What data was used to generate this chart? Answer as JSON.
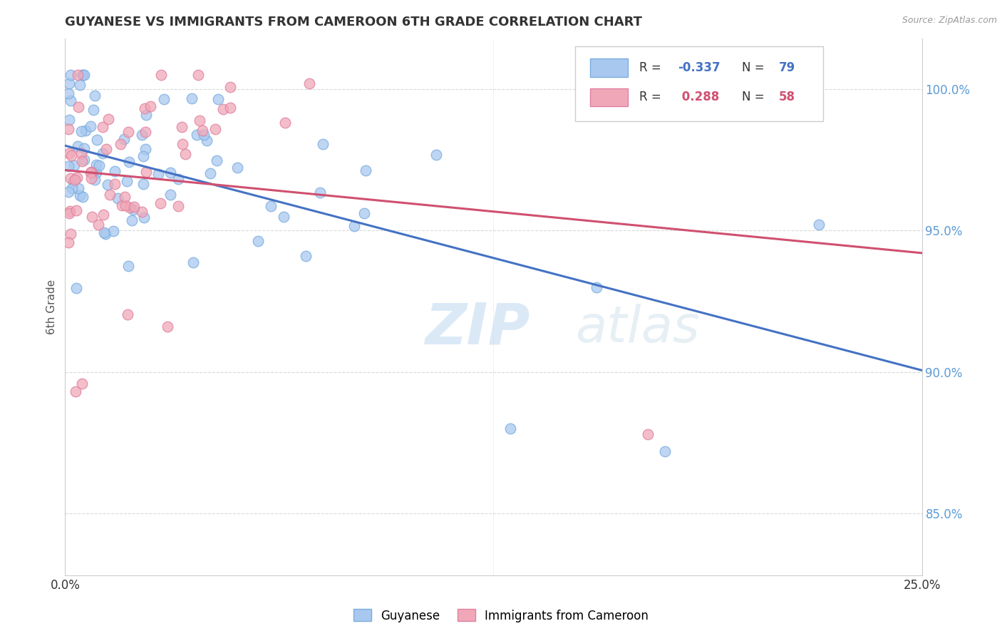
{
  "title": "GUYANESE VS IMMIGRANTS FROM CAMEROON 6TH GRADE CORRELATION CHART",
  "source": "Source: ZipAtlas.com",
  "ylabel": "6th Grade",
  "xlim": [
    0.0,
    0.25
  ],
  "ylim": [
    0.828,
    1.018
  ],
  "blue_R": -0.337,
  "blue_N": 79,
  "pink_R": 0.288,
  "pink_N": 58,
  "blue_color": "#a8c8f0",
  "pink_color": "#f0a8b8",
  "blue_edge_color": "#7aadde",
  "pink_edge_color": "#e080a0",
  "blue_line_color": "#4472C4",
  "pink_line_color": "#d05070",
  "legend_label_blue": "Guyanese",
  "legend_label_pink": "Immigrants from Cameroon",
  "right_ytick_positions": [
    1.0,
    0.95,
    0.9,
    0.85
  ],
  "right_ytick_labels": [
    "100.0%",
    "95.0%",
    "90.0%",
    "85.0%"
  ],
  "xtick_positions": [
    0.0,
    0.05,
    0.1,
    0.15,
    0.2,
    0.25
  ],
  "xtick_show": [
    0.0,
    0.25
  ],
  "watermark": "ZIPatlas",
  "grid_color": "#d8d8d8",
  "background_color": "#ffffff",
  "legend_R_color": "#4472C4",
  "legend_N_color": "#333333",
  "legend_pink_R_color": "#d05070"
}
